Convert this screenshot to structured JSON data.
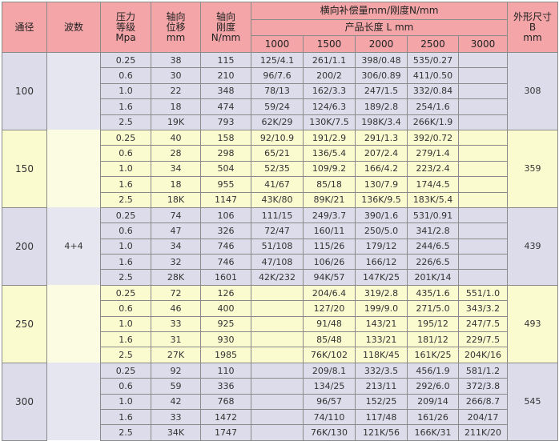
{
  "header": {
    "diameter": "通径",
    "waves": "波数",
    "pressure": [
      "压力",
      "等级",
      "Mpa"
    ],
    "axial_disp": [
      "轴向",
      "位移",
      "mm"
    ],
    "axial_stiff": [
      "轴向",
      "刚度",
      "N/mm"
    ],
    "lateral": "横向补偿量mm/刚度N/mm",
    "length": "产品长度 L mm",
    "lengths": [
      "1000",
      "1500",
      "2000",
      "2500",
      "3000"
    ],
    "outer": [
      "外形尺寸",
      "B",
      "mm"
    ]
  },
  "waves_value": "4+4",
  "groups": [
    {
      "dn": "100",
      "B": "308",
      "rows": [
        [
          "0.25",
          "38",
          "115",
          "125/4.1",
          "261/1.1",
          "398/0.48",
          "535/0.27",
          ""
        ],
        [
          "0.6",
          "30",
          "210",
          "96/7.6",
          "200/2",
          "306/0.89",
          "411/0.50",
          ""
        ],
        [
          "1.0",
          "22",
          "348",
          "78/13",
          "162/3.3",
          "247/1.5",
          "332/0.84",
          ""
        ],
        [
          "1.6",
          "18",
          "474",
          "59/24",
          "124/6.3",
          "189/2.8",
          "254/1.6",
          ""
        ],
        [
          "2.5",
          "19K",
          "793",
          "62K/29",
          "130K/7.5",
          "198K/3.4",
          "266K/1.9",
          ""
        ]
      ]
    },
    {
      "dn": "150",
      "B": "359",
      "rows": [
        [
          "0.25",
          "40",
          "158",
          "92/10.9",
          "191/2.9",
          "291/1.3",
          "392/0.72",
          ""
        ],
        [
          "0.6",
          "28",
          "298",
          "65/21",
          "136/5.4",
          "207/2.4",
          "279/1.4",
          ""
        ],
        [
          "1.0",
          "34",
          "504",
          "52/35",
          "109/9.2",
          "166/4.2",
          "223/2.4",
          ""
        ],
        [
          "1.6",
          "18",
          "955",
          "41/67",
          "85/18",
          "130/7.9",
          "174/4.5",
          ""
        ],
        [
          "2.5",
          "18K",
          "1147",
          "43K/80",
          "89K/21",
          "136K/9.5",
          "183K/5.4",
          ""
        ]
      ]
    },
    {
      "dn": "200",
      "B": "439",
      "rows": [
        [
          "0.25",
          "74",
          "106",
          "111/15",
          "249/3.7",
          "390/1.6",
          "531/0.91",
          ""
        ],
        [
          "0.6",
          "47",
          "326",
          "72/47",
          "160/11",
          "250/5.0",
          "341/2.8",
          ""
        ],
        [
          "1.0",
          "34",
          "746",
          "51/108",
          "115/26",
          "179/12",
          "244/6.5",
          ""
        ],
        [
          "1.6",
          "32",
          "746",
          "47/108",
          "106/26",
          "166/12",
          "226/6.5",
          ""
        ],
        [
          "2.5",
          "28K",
          "1601",
          "42K/232",
          "94K/57",
          "147K/25",
          "201K/14",
          ""
        ]
      ]
    },
    {
      "dn": "250",
      "B": "493",
      "rows": [
        [
          "0.25",
          "72",
          "126",
          "",
          "204/6.4",
          "319/2.8",
          "435/1.6",
          "551/1.0"
        ],
        [
          "0.6",
          "46",
          "400",
          "",
          "127/20",
          "199/9.0",
          "271/5.0",
          "343/3.2"
        ],
        [
          "1.0",
          "33",
          "925",
          "",
          "91/48",
          "143/21",
          "195/12",
          "247/7.5"
        ],
        [
          "1.6",
          "31",
          "930",
          "",
          "85/48",
          "133/21",
          "181/12",
          "229/7.5"
        ],
        [
          "2.5",
          "27K",
          "1985",
          "",
          "76K/102",
          "118K/45",
          "161K/25",
          "204K/16"
        ]
      ]
    },
    {
      "dn": "300",
      "B": "545",
      "rows": [
        [
          "0.25",
          "92",
          "110",
          "",
          "209/8.1",
          "332/3.5",
          "456/1.9",
          "581/1.2"
        ],
        [
          "0.6",
          "59",
          "336",
          "",
          "134/25",
          "213/11",
          "292/6.0",
          "372/3.8"
        ],
        [
          "1.0",
          "42",
          "768",
          "",
          "96/57",
          "152/25",
          "209/14",
          "266/8.7"
        ],
        [
          "1.6",
          "33",
          "1472",
          "",
          "74/110",
          "117/48",
          "161/26",
          "204/17"
        ],
        [
          "2.5",
          "34K",
          "1747",
          "",
          "76K/130",
          "121K/56",
          "166K/31",
          "211K/20"
        ]
      ]
    }
  ],
  "colors": {
    "header": "#f3a5a8",
    "band_a": "#dcdceb",
    "band_b": "#fbfbd0"
  }
}
